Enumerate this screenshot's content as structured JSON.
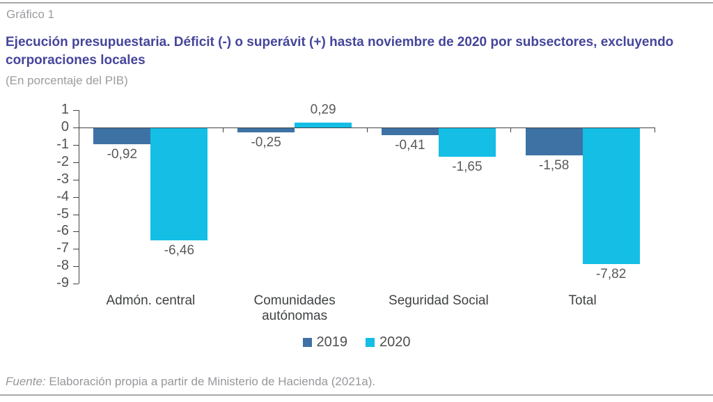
{
  "page": {
    "label": "Gráfico 1",
    "title": "Ejecución presupuestaria. Déficit (-) o superávit (+) hasta noviembre de 2020 por subsectores, excluyendo corporaciones locales",
    "subtitle": "(En porcentaje del PIB)",
    "source_prefix": "Fuente:",
    "source_text": " Elaboración propia a partir de Ministerio de Hacienda (2021a)."
  },
  "colors": {
    "series_2019": "#3e72a5",
    "series_2020": "#14bee5",
    "title_text": "#45459b",
    "muted_text": "#9b9ca0",
    "axis": "#3f4143",
    "value_label": "#58595b"
  },
  "chart_data": {
    "type": "bar",
    "title": "Ejecución presupuestaria. Déficit (-) o superávit (+) hasta noviembre de 2020 por subsectores, excluyendo corporaciones locales",
    "subtitle": "(En porcentaje del PIB)",
    "categories": [
      "Admón. central",
      "Comunidades autónomas",
      "Seguridad Social",
      "Total"
    ],
    "series": [
      {
        "name": "2019",
        "color_key": "series_2019",
        "values": [
          -0.92,
          -0.25,
          -0.41,
          -1.58
        ],
        "labels": [
          "-0,92",
          "-0,25",
          "-0,41",
          "-1,58"
        ]
      },
      {
        "name": "2020",
        "color_key": "series_2020",
        "values": [
          -6.46,
          0.29,
          -1.65,
          -7.82
        ],
        "labels": [
          "-6,46",
          "0,29",
          "-1,65",
          "-7,82"
        ]
      }
    ],
    "xlabel": "",
    "ylabel": "",
    "ylim": [
      -9,
      1
    ],
    "yticks": [
      1,
      0,
      -1,
      -2,
      -3,
      -4,
      -5,
      -6,
      -7,
      -8,
      -9
    ],
    "grid": false,
    "legend_position": "bottom"
  }
}
